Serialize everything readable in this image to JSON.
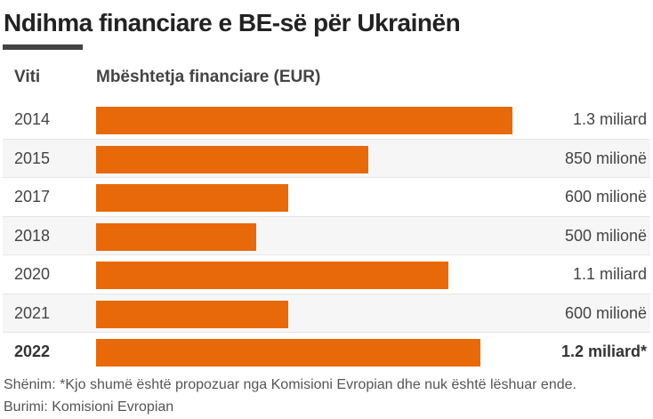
{
  "chart_data": {
    "type": "bar",
    "orientation": "horizontal",
    "title": "Ndihma financiare e BE-së për Ukrainën",
    "xlabel": "Mbështetja financiare (EUR)",
    "ylabel": "Viti",
    "unit": "billion EUR",
    "categories": [
      "2014",
      "2015",
      "2017",
      "2018",
      "2020",
      "2021",
      "2022"
    ],
    "values": [
      1.3,
      0.85,
      0.6,
      0.5,
      1.1,
      0.6,
      1.2
    ],
    "labels": [
      "1.3 miliard",
      "850 milionë",
      "600 milionë",
      "500 milionë",
      "1.1 miliard",
      "600 milionë",
      "1.2 miliard*"
    ],
    "highlight": [
      "2022"
    ],
    "xlim": [
      0,
      1.3
    ],
    "bar_color": "#e8690a",
    "note": "Shënim: *Kjo shumë është propozuar nga Komisioni Evropian dhe nuk është lëshuar ende.",
    "source": "Burimi: Komisioni Evropian"
  }
}
